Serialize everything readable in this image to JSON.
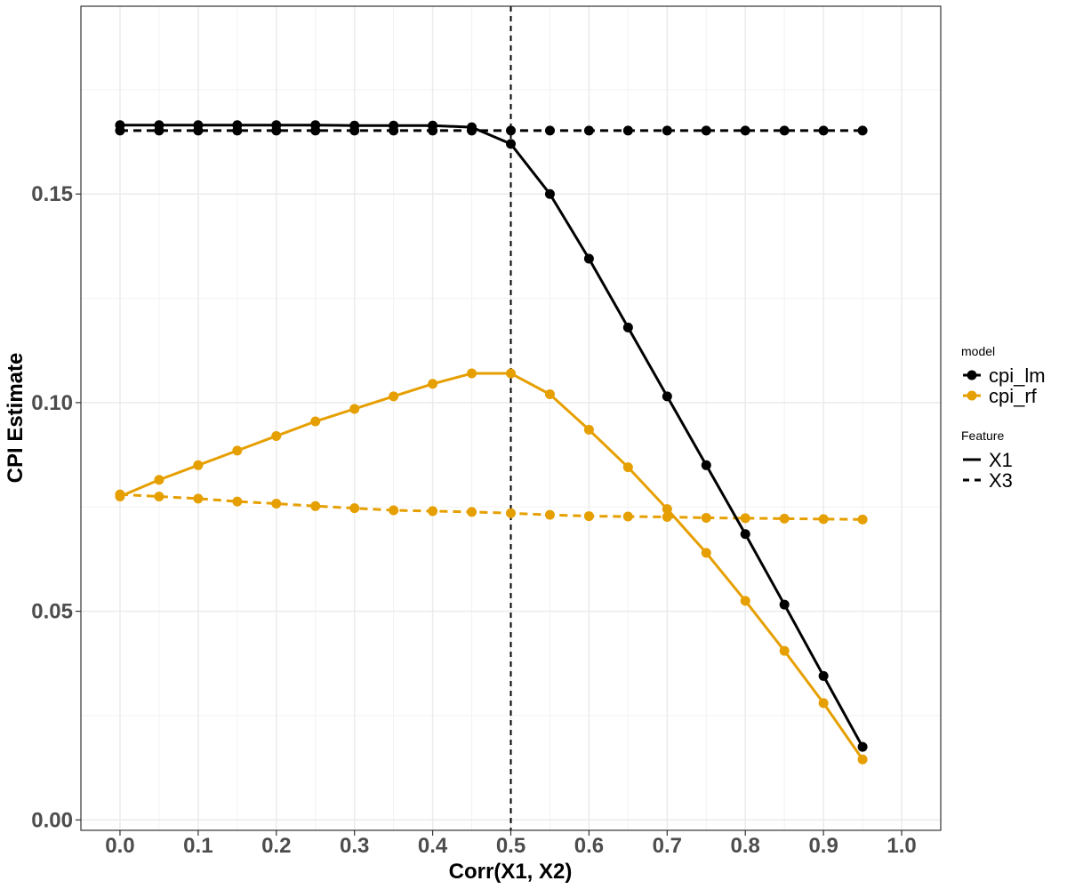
{
  "chart_data": {
    "type": "line",
    "xlabel": "Corr(X1, X2)",
    "ylabel": "CPI Estimate",
    "xlim": [
      -0.05,
      1.05
    ],
    "ylim": [
      -0.0025,
      0.195
    ],
    "x_ticks": [
      "0.0",
      "0.1",
      "0.2",
      "0.3",
      "0.4",
      "0.5",
      "0.6",
      "0.7",
      "0.8",
      "0.9",
      "1.0"
    ],
    "y_ticks": [
      "0.00",
      "0.05",
      "0.10",
      "0.15"
    ],
    "grid": true,
    "vline": {
      "x": 0.5,
      "style": "dashed",
      "color": "#000000"
    },
    "x": [
      0.0,
      0.05,
      0.1,
      0.15,
      0.2,
      0.25,
      0.3,
      0.35,
      0.4,
      0.45,
      0.5,
      0.55,
      0.6,
      0.65,
      0.7,
      0.75,
      0.8,
      0.85,
      0.9,
      0.95
    ],
    "series": [
      {
        "model": "cpi_lm",
        "feature": "X1",
        "color": "#000000",
        "linestyle": "solid",
        "values": [
          0.1665,
          0.1665,
          0.1665,
          0.1665,
          0.1665,
          0.1665,
          0.1664,
          0.1664,
          0.1664,
          0.166,
          0.162,
          0.15,
          0.1345,
          0.118,
          0.1015,
          0.085,
          0.0685,
          0.0516,
          0.0345,
          0.0175
        ]
      },
      {
        "model": "cpi_lm",
        "feature": "X3",
        "color": "#000000",
        "linestyle": "dashed",
        "values": [
          0.1652,
          0.1652,
          0.1652,
          0.1652,
          0.1652,
          0.1652,
          0.1652,
          0.1652,
          0.1652,
          0.1652,
          0.1652,
          0.1652,
          0.1652,
          0.1652,
          0.1652,
          0.1652,
          0.1652,
          0.1652,
          0.1652,
          0.1652
        ]
      },
      {
        "model": "cpi_rf",
        "feature": "X1",
        "color": "#E69F00",
        "linestyle": "solid",
        "values": [
          0.0775,
          0.0815,
          0.085,
          0.0885,
          0.092,
          0.0955,
          0.0985,
          0.1015,
          0.1045,
          0.107,
          0.107,
          0.102,
          0.0935,
          0.0845,
          0.0745,
          0.064,
          0.0525,
          0.0405,
          0.028,
          0.0145
        ]
      },
      {
        "model": "cpi_rf",
        "feature": "X3",
        "color": "#E69F00",
        "linestyle": "dashed",
        "values": [
          0.078,
          0.0775,
          0.077,
          0.0763,
          0.0758,
          0.0752,
          0.0747,
          0.0742,
          0.074,
          0.0738,
          0.0735,
          0.0731,
          0.0728,
          0.0727,
          0.0726,
          0.0724,
          0.0723,
          0.0722,
          0.0721,
          0.072
        ]
      }
    ],
    "legend": {
      "placement": "right",
      "groups": [
        {
          "title": "model",
          "kind": "color",
          "entries": [
            {
              "label": "cpi_lm",
              "color": "#000000"
            },
            {
              "label": "cpi_rf",
              "color": "#E69F00"
            }
          ]
        },
        {
          "title": "Feature",
          "kind": "linetype",
          "entries": [
            {
              "label": "X1",
              "linestyle": "solid"
            },
            {
              "label": "X3",
              "linestyle": "dashed"
            }
          ]
        }
      ]
    }
  }
}
